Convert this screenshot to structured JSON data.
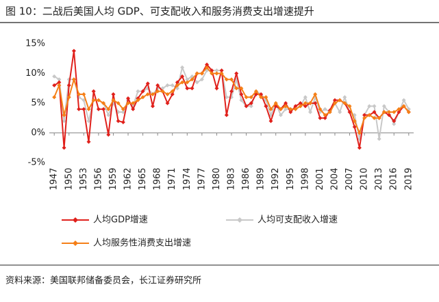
{
  "chart_data": {
    "type": "line",
    "title": "图 10：二战后美国人均 GDP、可支配收入和服务消费支出增速提升",
    "source": "资料来源：美国联邦储备委员会，长江证券研究所",
    "x": [
      1947,
      1948,
      1949,
      1950,
      1951,
      1952,
      1953,
      1954,
      1955,
      1956,
      1957,
      1958,
      1959,
      1960,
      1961,
      1962,
      1963,
      1964,
      1965,
      1966,
      1967,
      1968,
      1969,
      1970,
      1971,
      1972,
      1973,
      1974,
      1975,
      1976,
      1977,
      1978,
      1979,
      1980,
      1981,
      1982,
      1983,
      1984,
      1985,
      1986,
      1987,
      1988,
      1989,
      1990,
      1991,
      1992,
      1993,
      1994,
      1995,
      1996,
      1997,
      1998,
      1999,
      2000,
      2001,
      2002,
      2003,
      2004,
      2005,
      2006,
      2007,
      2008,
      2009,
      2010,
      2011,
      2012,
      2013,
      2014,
      2015,
      2016,
      2017,
      2018,
      2019
    ],
    "xlim": [
      1946,
      2020
    ],
    "xticks": [
      1947,
      1950,
      1953,
      1956,
      1959,
      1962,
      1965,
      1968,
      1971,
      1974,
      1977,
      1980,
      1983,
      1986,
      1989,
      1992,
      1995,
      1998,
      2001,
      2004,
      2007,
      2010,
      2013,
      2016,
      2019
    ],
    "ylim": [
      -5,
      15
    ],
    "yticks": [
      {
        "value": -5,
        "label": "-5%"
      },
      {
        "value": 0,
        "label": "0%"
      },
      {
        "value": 5,
        "label": "5%"
      },
      {
        "value": 10,
        "label": "10%"
      },
      {
        "value": 15,
        "label": "15%"
      }
    ],
    "series": [
      {
        "name": "人均GDP增速",
        "color": "#e0201b",
        "values": [
          8,
          8.5,
          -2.5,
          8,
          13.8,
          4,
          4,
          -1.5,
          7,
          4,
          4,
          -0.3,
          6.5,
          2,
          1.8,
          5.8,
          4,
          5.8,
          7,
          8.3,
          4.5,
          8,
          7,
          5,
          6.5,
          8.5,
          9.5,
          7.5,
          7.5,
          10,
          10,
          11.5,
          10.5,
          7.5,
          10.5,
          3,
          7,
          10,
          6.5,
          4.5,
          5,
          6.5,
          6.5,
          4.5,
          2,
          4.5,
          4,
          5,
          3.5,
          4.5,
          5,
          4.5,
          5,
          5,
          2.5,
          2.5,
          3.8,
          5.5,
          5.5,
          5,
          3.5,
          1,
          -2.5,
          3,
          3,
          3.5,
          2.5,
          3.5,
          3,
          2,
          3.5,
          4.5,
          3.5
        ]
      },
      {
        "name": "人均可支配收入增速",
        "color": "#c8c8c8",
        "values": [
          9.5,
          9,
          2,
          9,
          9,
          6,
          5.5,
          2,
          5.5,
          5.5,
          5,
          3,
          5,
          3.5,
          3.5,
          5.5,
          4.5,
          7,
          7,
          7.5,
          6.5,
          7.5,
          7.5,
          8,
          8,
          7.5,
          11,
          9,
          9.5,
          8.5,
          9,
          10.5,
          10.5,
          10.5,
          10.5,
          6,
          6,
          9,
          5.5,
          4.5,
          4.5,
          7,
          6.5,
          5.5,
          3,
          5,
          3,
          4,
          4,
          4,
          4.5,
          6,
          3.5,
          6,
          3.5,
          4,
          3.5,
          5,
          3.5,
          6,
          3.5,
          3,
          -1,
          3,
          4.5,
          4.5,
          -1,
          4.5,
          3.5,
          1.5,
          3.5,
          5.5,
          4
        ]
      },
      {
        "name": "人均服务性消费支出增速",
        "color": "#f57f17",
        "values": [
          6,
          8,
          3,
          6,
          9,
          6.5,
          6.5,
          4,
          5.5,
          5.5,
          5,
          4,
          5.5,
          5,
          4,
          5,
          5,
          5.5,
          6,
          6.5,
          6.5,
          7,
          7,
          6.5,
          7,
          8,
          8.5,
          8.5,
          9,
          10,
          10,
          11,
          10,
          10,
          10,
          9,
          9,
          7.5,
          7.5,
          6,
          6,
          7,
          6,
          6,
          4,
          5,
          4,
          4.5,
          4,
          4,
          4.5,
          5,
          5,
          6.5,
          4,
          3,
          3.5,
          5,
          5.5,
          5,
          4.5,
          2,
          0,
          2.5,
          3,
          2.5,
          2.5,
          3.5,
          3.5,
          3.5,
          4,
          4.5,
          3.5
        ]
      }
    ]
  }
}
